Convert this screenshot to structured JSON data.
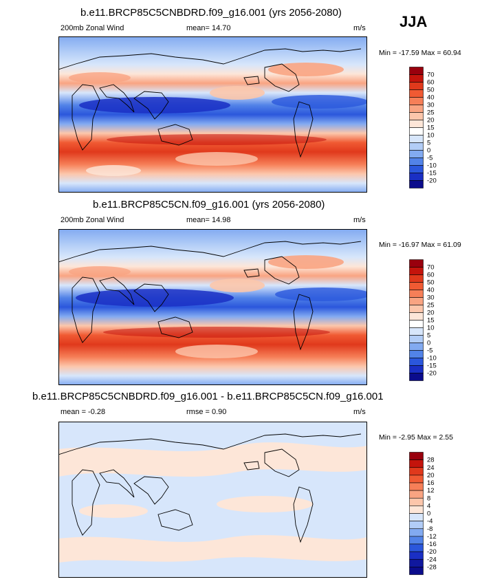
{
  "season": "JJA",
  "panels": [
    {
      "title": "b.e11.BRCP85C5CNBDRD.f09_g16.001 (yrs 2056-2080)",
      "left_label": "200mb Zonal Wind",
      "center_label": "mean=  14.70",
      "units": "m/s",
      "stats": "Min = -17.59 Max =  60.94",
      "colorbar": {
        "labels": [
          "70",
          "60",
          "50",
          "40",
          "30",
          "25",
          "20",
          "15",
          "10",
          "5",
          "0",
          "-5",
          "-10",
          "-15",
          "-20"
        ],
        "colors": [
          "#99000d",
          "#c4140c",
          "#e0391c",
          "#f05a33",
          "#f67f58",
          "#f9a482",
          "#fcc6ab",
          "#fde6d8",
          "#ffffff",
          "#d7e6fb",
          "#b2cdf7",
          "#82aaf1",
          "#5283e8",
          "#2b57dc",
          "#1a2fc4",
          "#0b0c8c"
        ]
      }
    },
    {
      "title": "b.e11.BRCP85C5CN.f09_g16.001 (yrs 2056-2080)",
      "left_label": "200mb Zonal Wind",
      "center_label": "mean=  14.98",
      "units": "m/s",
      "stats": "Min = -16.97 Max =  61.09",
      "colorbar": {
        "labels": [
          "70",
          "60",
          "50",
          "40",
          "30",
          "25",
          "20",
          "15",
          "10",
          "5",
          "0",
          "-5",
          "-10",
          "-15",
          "-20"
        ],
        "colors": [
          "#99000d",
          "#c4140c",
          "#e0391c",
          "#f05a33",
          "#f67f58",
          "#f9a482",
          "#fcc6ab",
          "#fde6d8",
          "#ffffff",
          "#d7e6fb",
          "#b2cdf7",
          "#82aaf1",
          "#5283e8",
          "#2b57dc",
          "#1a2fc4",
          "#0b0c8c"
        ]
      }
    },
    {
      "title": "b.e11.BRCP85C5CNBDRD.f09_g16.001 - b.e11.BRCP85C5CN.f09_g16.001",
      "left_label": "mean =  -0.28",
      "center_label": "rmse =   0.90",
      "units": "m/s",
      "stats": "Min =  -2.95 Max =   2.55",
      "colorbar": {
        "labels": [
          "28",
          "24",
          "20",
          "16",
          "12",
          "8",
          "4",
          "0",
          "-4",
          "-8",
          "-12",
          "-16",
          "-20",
          "-24",
          "-28"
        ],
        "colors": [
          "#99000d",
          "#c4140c",
          "#e0391c",
          "#f05a33",
          "#f67f58",
          "#f9a482",
          "#fcc6ab",
          "#fde6d8",
          "#d7e6fb",
          "#b2cdf7",
          "#82aaf1",
          "#5283e8",
          "#2b57dc",
          "#1a2fc4",
          "#10189e",
          "#0b0c8c"
        ]
      }
    }
  ]
}
